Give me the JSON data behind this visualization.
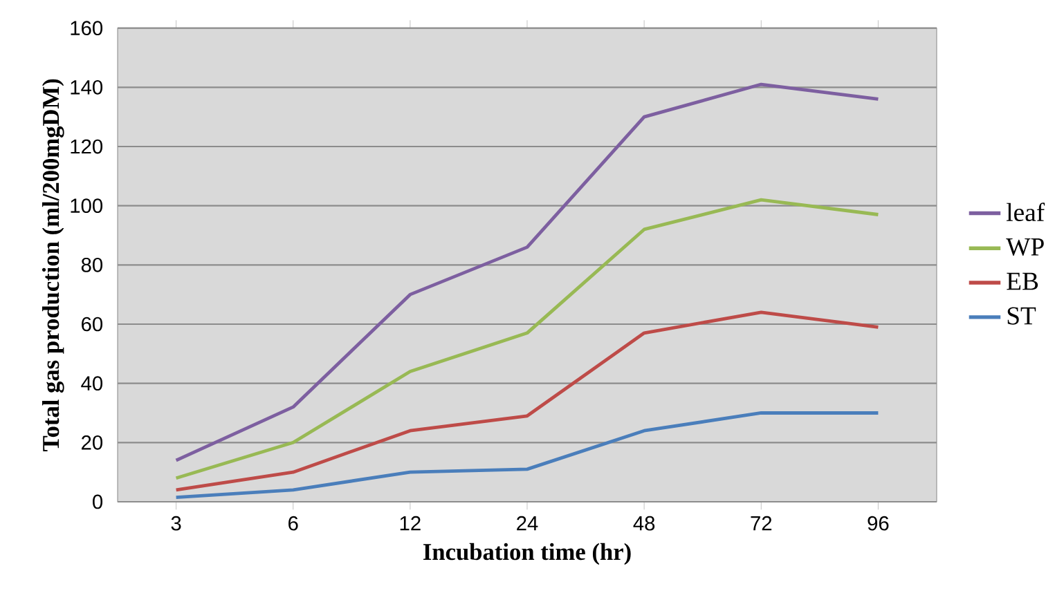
{
  "chart_data": {
    "type": "line",
    "xlabel": "Incubation time (hr)",
    "ylabel": "Total gas production (ml/200mgDM)",
    "categories": [
      "3",
      "6",
      "12",
      "24",
      "48",
      "72",
      "96"
    ],
    "series": [
      {
        "name": "leaf",
        "color": "#7d5fa0",
        "values": [
          14,
          32,
          70,
          86,
          130,
          141,
          136
        ]
      },
      {
        "name": "WP",
        "color": "#98b954",
        "values": [
          8,
          20,
          44,
          57,
          92,
          102,
          97
        ]
      },
      {
        "name": "EB",
        "color": "#be4b48",
        "values": [
          4,
          10,
          24,
          29,
          57,
          64,
          59
        ]
      },
      {
        "name": "ST",
        "color": "#4a7ebb",
        "values": [
          1.5,
          4,
          10,
          11,
          24,
          30,
          30
        ]
      }
    ],
    "ylim": [
      0,
      160
    ],
    "yticks": [
      0,
      20,
      40,
      60,
      80,
      100,
      120,
      140,
      160
    ],
    "grid": "y",
    "legend": "right",
    "marker": "none",
    "line_style": "solid"
  }
}
